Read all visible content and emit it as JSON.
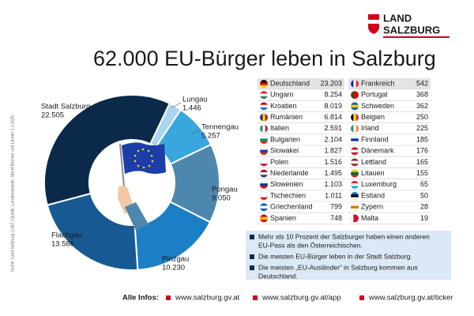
{
  "header": {
    "logo_line1": "LAND",
    "logo_line2": "SALZBURG",
    "title": "62.000 EU-Bürger leben in Salzburg"
  },
  "chart_data": {
    "type": "pie",
    "donut": true,
    "categories": [
      "Stadt Salzburg",
      "Lungau",
      "Tennengau",
      "Pongau",
      "Pinzgau",
      "Flachgau"
    ],
    "values": [
      22505,
      1446,
      5257,
      9050,
      10230,
      13586
    ],
    "value_labels": [
      "22.505",
      "1.446",
      "5.257",
      "9.050",
      "10.230",
      "13.586"
    ],
    "colors": [
      "#0b2a4a",
      "#a9d5f0",
      "#3aa6de",
      "#4d87ad",
      "#1c7fc6",
      "#175a93"
    ]
  },
  "table": {
    "left": [
      [
        "Deutschland",
        "23.203"
      ],
      [
        "Ungarn",
        "8.254"
      ],
      [
        "Kroatien",
        "8.019"
      ],
      [
        "Rumänien",
        "6.814"
      ],
      [
        "Italien",
        "2.591"
      ],
      [
        "Bulgarien",
        "2.104"
      ],
      [
        "Slowakei",
        "1.827"
      ],
      [
        "Polen",
        "1.516"
      ],
      [
        "Niederlande",
        "1.495"
      ],
      [
        "Slowenien",
        "1.103"
      ],
      [
        "Tschechien",
        "1.011"
      ],
      [
        "Griechenland",
        "799"
      ],
      [
        "Spanien",
        "748"
      ]
    ],
    "right": [
      [
        "Frankreich",
        "542"
      ],
      [
        "Portugal",
        "368"
      ],
      [
        "Schweden",
        "362"
      ],
      [
        "Belgien",
        "250"
      ],
      [
        "Irland",
        "225"
      ],
      [
        "Finnland",
        "185"
      ],
      [
        "Dänemark",
        "176"
      ],
      [
        "Lettland",
        "165"
      ],
      [
        "Litauen",
        "155"
      ],
      [
        "Luxemburg",
        "65"
      ],
      [
        "Estland",
        "50"
      ],
      [
        "Zypern",
        "28"
      ],
      [
        "Malta",
        "19"
      ]
    ]
  },
  "notes": [
    "Mehr als 10 Prozent der Salzburger haben einen anderen",
    "EU-Pass als den Österreichischen.",
    "Die meisten EU-Bürger leben in der Stadt Salzburg.",
    "Die meisten „EU-Ausländer“ in Salzburg kommen aus",
    "Deutschland."
  ],
  "footer": {
    "label": "Alle Infos:",
    "links": [
      "www.salzburg.gv.at",
      "www.salzburg.gv.at/app",
      "www.salzburg.gv.at/ticker"
    ]
  },
  "source": "Grafik: Land Salzburg | LMZ | Quelle: Landesstatistik, Stand Bezirke und Länder 1.1.2025"
}
